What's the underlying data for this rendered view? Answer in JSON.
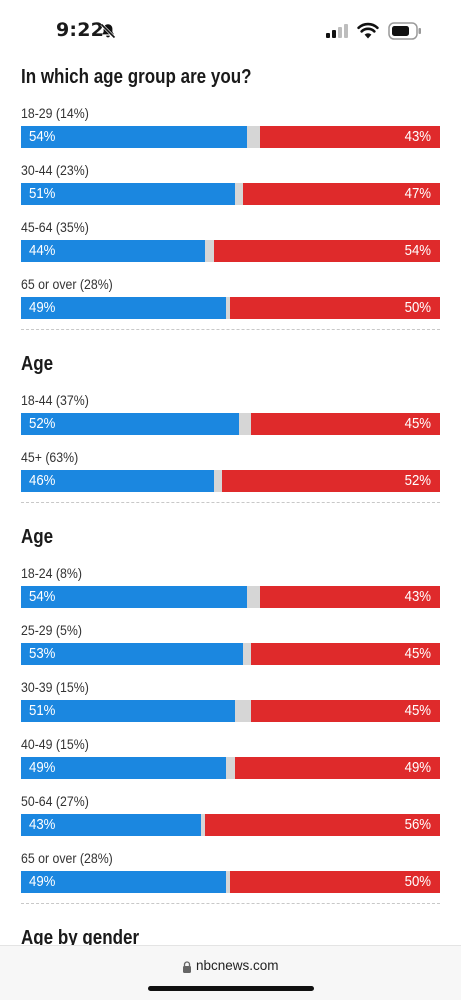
{
  "status_bar": {
    "time": "9:22",
    "icons": [
      "bell-slash-icon",
      "cellular-signal-icon",
      "wifi-icon",
      "battery-icon"
    ]
  },
  "colors": {
    "blue": "#1b87e0",
    "red": "#df2a2b",
    "gap": "#d6d6d6"
  },
  "sections": [
    {
      "title": "In which age group are you?",
      "rows": [
        {
          "label": "18-29 (14%)",
          "blue": 54,
          "red": 43,
          "blue_text": "54%",
          "red_text": "43%"
        },
        {
          "label": "30-44 (23%)",
          "blue": 51,
          "red": 47,
          "blue_text": "51%",
          "red_text": "47%"
        },
        {
          "label": "45-64 (35%)",
          "blue": 44,
          "red": 54,
          "blue_text": "44%",
          "red_text": "54%"
        },
        {
          "label": "65 or over (28%)",
          "blue": 49,
          "red": 50,
          "blue_text": "49%",
          "red_text": "50%"
        }
      ]
    },
    {
      "title": "Age",
      "rows": [
        {
          "label": "18-44 (37%)",
          "blue": 52,
          "red": 45,
          "blue_text": "52%",
          "red_text": "45%"
        },
        {
          "label": "45+ (63%)",
          "blue": 46,
          "red": 52,
          "blue_text": "46%",
          "red_text": "52%"
        }
      ]
    },
    {
      "title": "Age",
      "rows": [
        {
          "label": "18-24 (8%)",
          "blue": 54,
          "red": 43,
          "blue_text": "54%",
          "red_text": "43%"
        },
        {
          "label": "25-29 (5%)",
          "blue": 53,
          "red": 45,
          "blue_text": "53%",
          "red_text": "45%"
        },
        {
          "label": "30-39 (15%)",
          "blue": 51,
          "red": 45,
          "blue_text": "51%",
          "red_text": "45%"
        },
        {
          "label": "40-49 (15%)",
          "blue": 49,
          "red": 49,
          "blue_text": "49%",
          "red_text": "49%"
        },
        {
          "label": "50-64 (27%)",
          "blue": 43,
          "red": 56,
          "blue_text": "43%",
          "red_text": "56%"
        },
        {
          "label": "65 or over (28%)",
          "blue": 49,
          "red": 50,
          "blue_text": "49%",
          "red_text": "50%"
        }
      ]
    },
    {
      "title": "Age by gender",
      "rows": []
    }
  ],
  "url_bar": {
    "url": "nbcnews.com",
    "icon": "lock-icon"
  }
}
